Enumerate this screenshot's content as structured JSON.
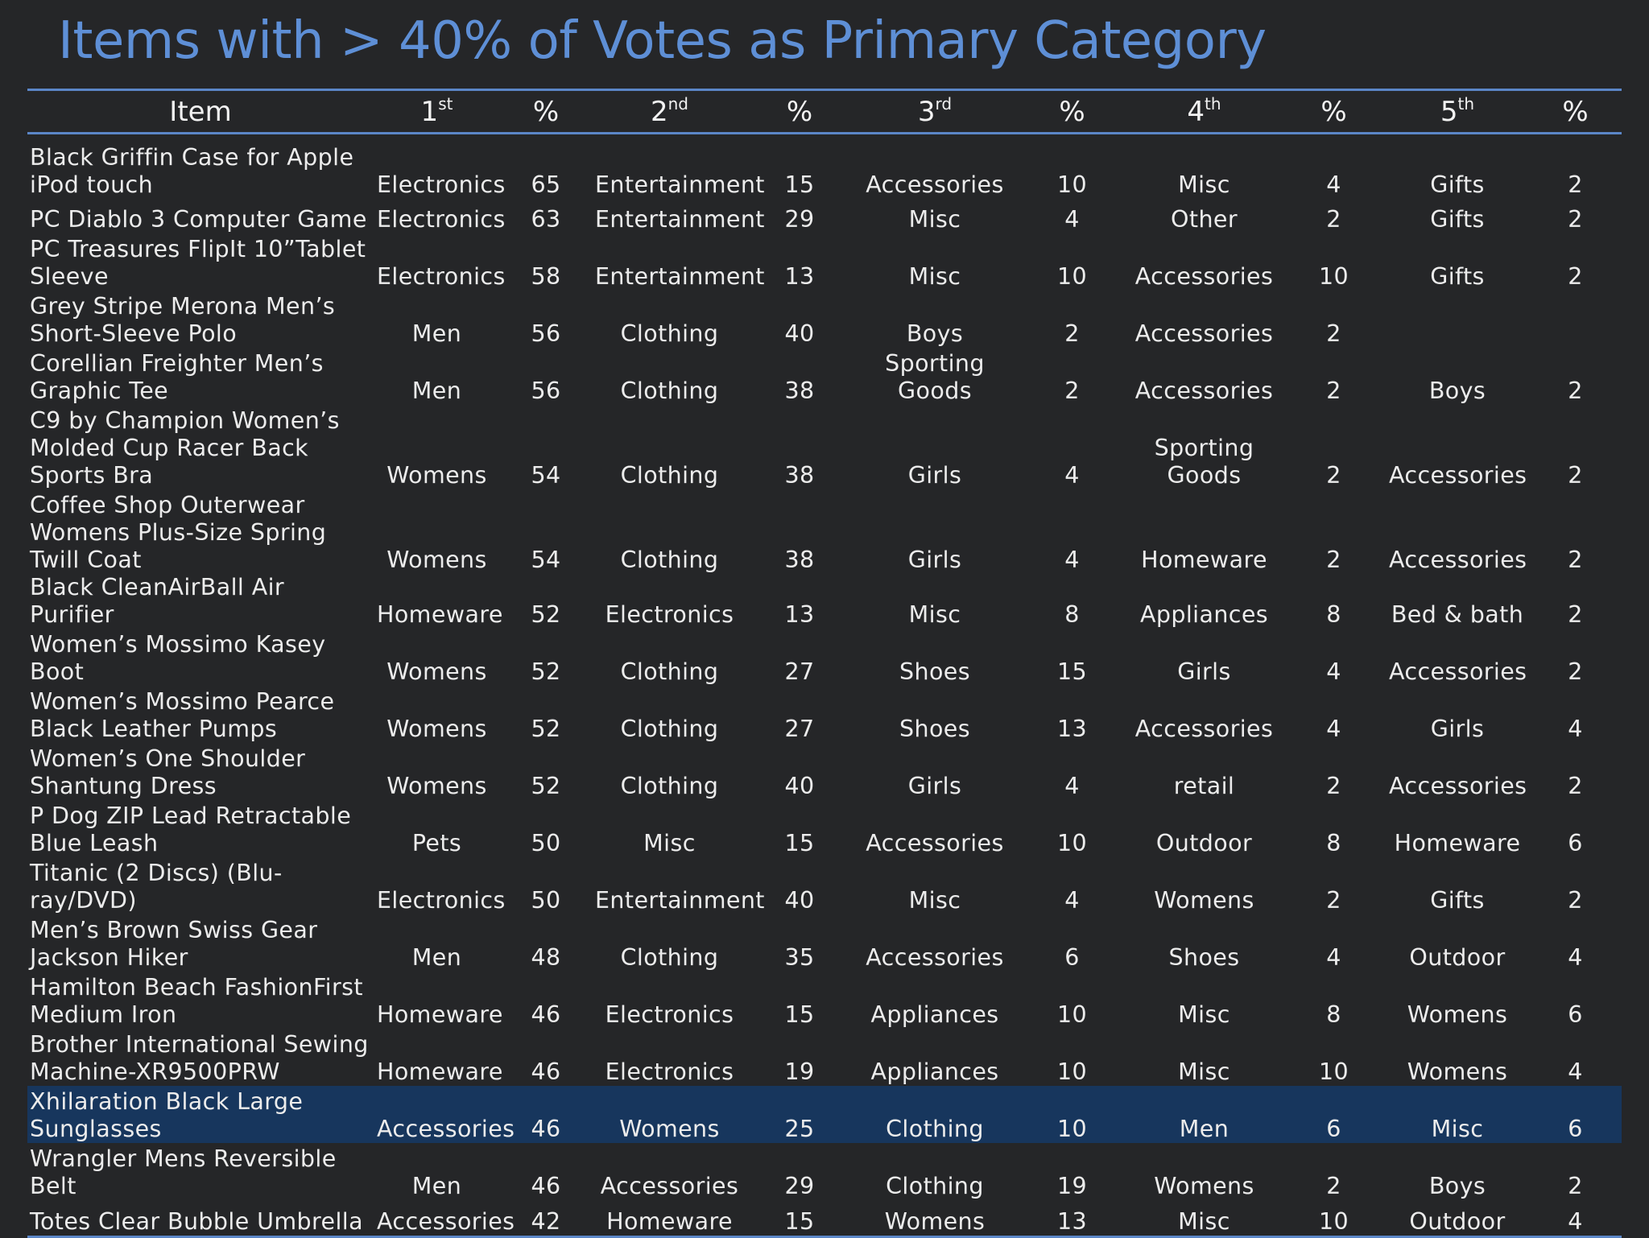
{
  "title": "Items with > 40% of Votes as Primary Category",
  "header": {
    "item": "Item",
    "c1": "1",
    "c1_sup": "st",
    "c2": "2",
    "c2_sup": "nd",
    "c3": "3",
    "c3_sup": "rd",
    "c4": "4",
    "c4_sup": "th",
    "c5": "5",
    "c5_sup": "th",
    "pct": "%"
  },
  "rows": [
    {
      "item": "Black Griffin Case for Apple iPod touch",
      "c1": "Electronics",
      "p1": "65",
      "c2": "Entertainment",
      "p2": "15",
      "c3": "Accessories",
      "p3": "10",
      "c4": "Misc",
      "p4": "4",
      "c5": "Gifts",
      "p5": "2"
    },
    {
      "item": "PC Diablo 3 Computer Game",
      "c1": "Electronics",
      "p1": "63",
      "c2": "Entertainment",
      "p2": "29",
      "c3": "Misc",
      "p3": "4",
      "c4": "Other",
      "p4": "2",
      "c5": "Gifts",
      "p5": "2"
    },
    {
      "item": "PC Treasures FlipIt 10”Tablet Sleeve",
      "c1": "Electronics",
      "p1": "58",
      "c2": "Entertainment",
      "p2": "13",
      "c3": "Misc",
      "p3": "10",
      "c4": "Accessories",
      "p4": "10",
      "c5": "Gifts",
      "p5": "2"
    },
    {
      "item": "Grey Stripe Merona Men’s Short-Sleeve Polo",
      "c1": "Men",
      "p1": "56",
      "c2": "Clothing",
      "p2": "40",
      "c3": "Boys",
      "p3": "2",
      "c4": "Accessories",
      "p4": "2",
      "c5": "",
      "p5": ""
    },
    {
      "item": "Corellian Freighter Men’s Graphic Tee",
      "c1": "Men",
      "p1": "56",
      "c2": "Clothing",
      "p2": "38",
      "c3": "Sporting Goods",
      "p3": "2",
      "c4": "Accessories",
      "p4": "2",
      "c5": "Boys",
      "p5": "2"
    },
    {
      "item": "C9 by Champion Women’s Molded Cup Racer Back Sports Bra",
      "c1": "Womens",
      "p1": "54",
      "c2": "Clothing",
      "p2": "38",
      "c3": "Girls",
      "p3": "4",
      "c4": "Sporting Goods",
      "p4": "2",
      "c5": "Accessories",
      "p5": "2"
    },
    {
      "item": "Coffee Shop Outerwear Womens Plus-Size Spring Twill Coat",
      "c1": "Womens",
      "p1": "54",
      "c2": "Clothing",
      "p2": "38",
      "c3": "Girls",
      "p3": "4",
      "c4": "Homeware",
      "p4": "2",
      "c5": "Accessories",
      "p5": "2"
    },
    {
      "item": "Black CleanAirBall Air Purifier",
      "c1": "Homeware",
      "p1": "52",
      "c2": "Electronics",
      "p2": "13",
      "c3": "Misc",
      "p3": "8",
      "c4": "Appliances",
      "p4": "8",
      "c5": "Bed & bath",
      "p5": "2"
    },
    {
      "item": "Women’s Mossimo Kasey Boot",
      "c1": "Womens",
      "p1": "52",
      "c2": "Clothing",
      "p2": "27",
      "c3": "Shoes",
      "p3": "15",
      "c4": "Girls",
      "p4": "4",
      "c5": "Accessories",
      "p5": "2"
    },
    {
      "item": "Women’s Mossimo Pearce Black Leather Pumps",
      "c1": "Womens",
      "p1": "52",
      "c2": "Clothing",
      "p2": "27",
      "c3": "Shoes",
      "p3": "13",
      "c4": "Accessories",
      "p4": "4",
      "c5": "Girls",
      "p5": "4"
    },
    {
      "item": "Women’s One Shoulder Shantung Dress",
      "c1": "Womens",
      "p1": "52",
      "c2": "Clothing",
      "p2": "40",
      "c3": "Girls",
      "p3": "4",
      "c4": "retail",
      "p4": "2",
      "c5": "Accessories",
      "p5": "2"
    },
    {
      "item": "P Dog ZIP Lead Retractable Blue Leash",
      "c1": "Pets",
      "p1": "50",
      "c2": "Misc",
      "p2": "15",
      "c3": "Accessories",
      "p3": "10",
      "c4": "Outdoor",
      "p4": "8",
      "c5": "Homeware",
      "p5": "6"
    },
    {
      "item": "Titanic (2 Discs) (Blu-ray/DVD)",
      "c1": "Electronics",
      "p1": "50",
      "c2": "Entertainment",
      "p2": "40",
      "c3": "Misc",
      "p3": "4",
      "c4": "Womens",
      "p4": "2",
      "c5": "Gifts",
      "p5": "2"
    },
    {
      "item": "Men’s Brown Swiss Gear Jackson Hiker",
      "c1": "Men",
      "p1": "48",
      "c2": "Clothing",
      "p2": "35",
      "c3": "Accessories",
      "p3": "6",
      "c4": "Shoes",
      "p4": "4",
      "c5": "Outdoor",
      "p5": "4"
    },
    {
      "item": "Hamilton Beach FashionFirst Medium Iron",
      "c1": "Homeware",
      "p1": "46",
      "c2": "Electronics",
      "p2": "15",
      "c3": "Appliances",
      "p3": "10",
      "c4": "Misc",
      "p4": "8",
      "c5": "Womens",
      "p5": "6"
    },
    {
      "item": "Brother International Sewing Machine-XR9500PRW",
      "c1": "Homeware",
      "p1": "46",
      "c2": "Electronics",
      "p2": "19",
      "c3": "Appliances",
      "p3": "10",
      "c4": "Misc",
      "p4": "10",
      "c5": "Womens",
      "p5": "4"
    },
    {
      "item": "Xhilaration Black Large Sunglasses",
      "c1": "Accessories",
      "p1": "46",
      "c2": "Womens",
      "p2": "25",
      "c3": "Clothing",
      "p3": "10",
      "c4": "Men",
      "p4": "6",
      "c5": "Misc",
      "p5": "6"
    },
    {
      "item": "Wrangler Mens Reversible Belt",
      "c1": "Men",
      "p1": "46",
      "c2": "Accessories",
      "p2": "29",
      "c3": "Clothing",
      "p3": "19",
      "c4": "Womens",
      "p4": "2",
      "c5": "Boys",
      "p5": "2"
    },
    {
      "item": "Totes Clear Bubble Umbrella",
      "c1": "Accessories",
      "p1": "42",
      "c2": "Homeware",
      "p2": "15",
      "c3": "Womens",
      "p3": "13",
      "c4": "Misc",
      "p4": "10",
      "c5": "Outdoor",
      "p5": "4"
    }
  ],
  "highlight_row": "Xhilaration Black Large Sunglasses",
  "colors": {
    "background": "#252628",
    "title": "#5e8fd6",
    "rule": "#5b86c7",
    "highlight": "#17365d",
    "text": "#ececec"
  }
}
